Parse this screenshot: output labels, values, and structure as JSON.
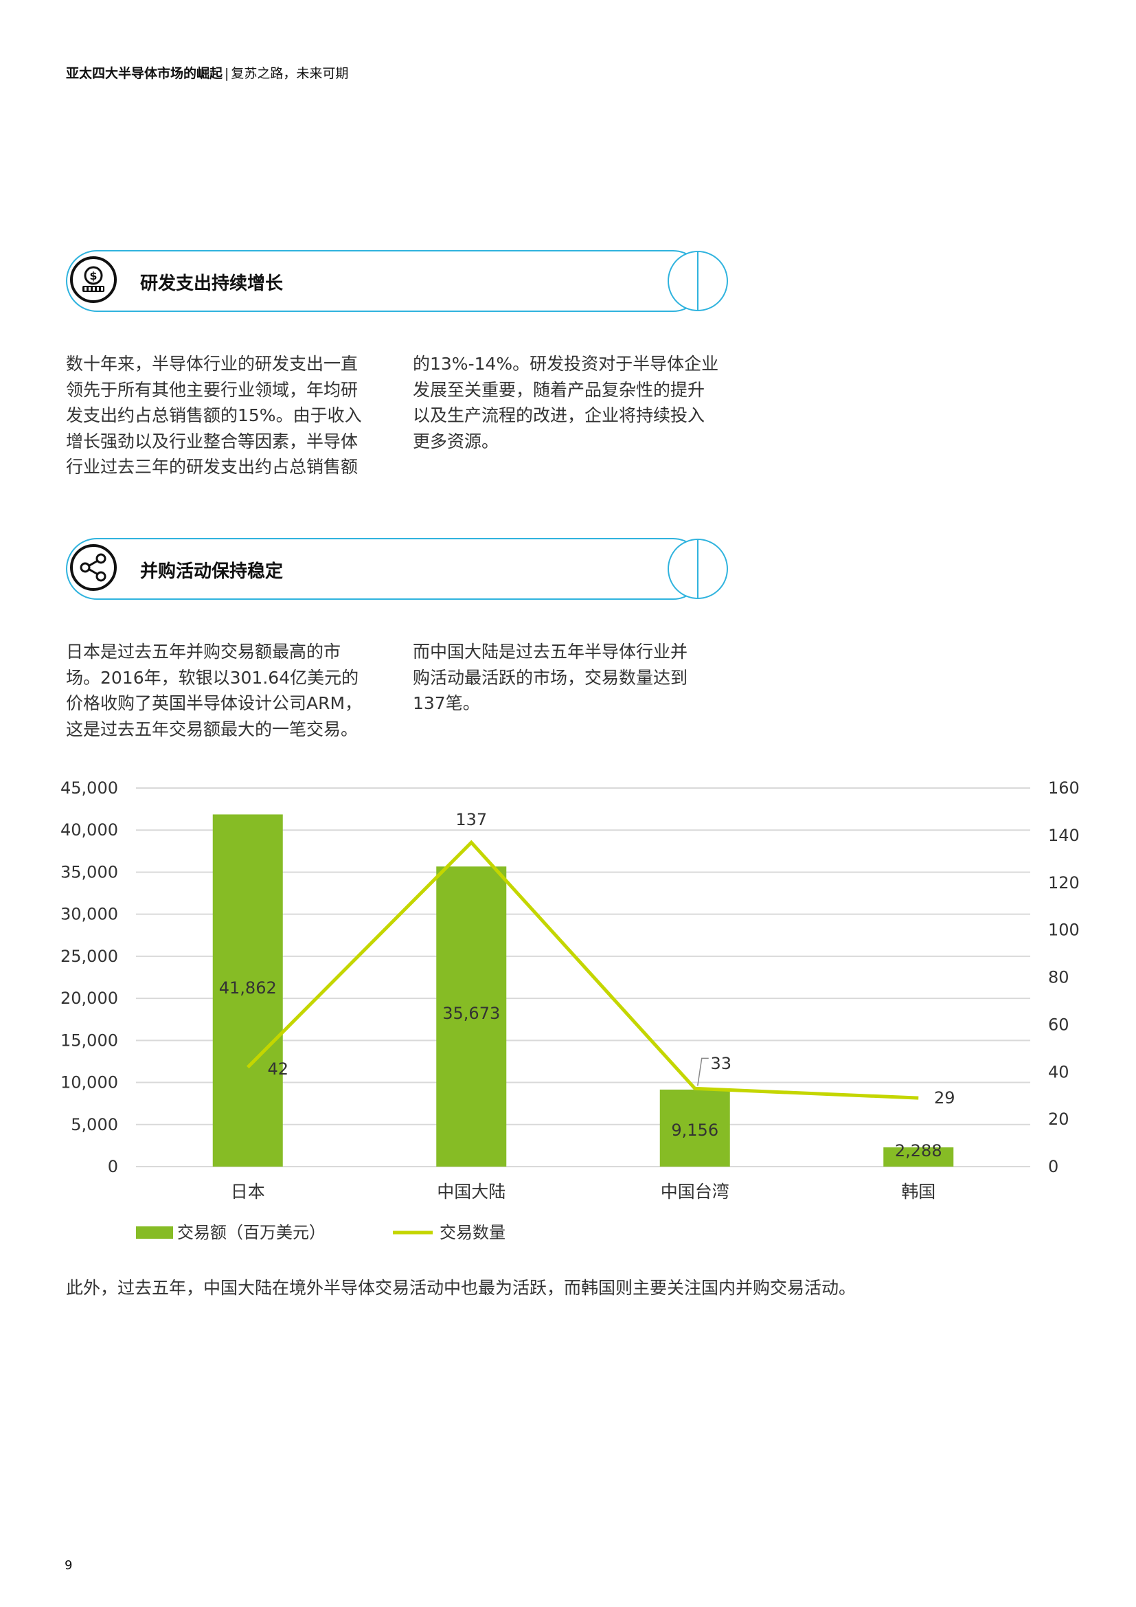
{
  "header": {
    "title_bold": "亚太四大半导体市场的崛起",
    "separator": "|",
    "subtitle": "复苏之路，未来可期"
  },
  "section1": {
    "icon": "money-gear-icon",
    "title": "研发支出持续增长",
    "col1": [
      "数十年来，半导体行业的研发支出一直",
      "领先于所有其他主要行业领域，年均研",
      "发支出约占总销售额的15%。由于收入",
      "增长强劲以及行业整合等因素，半导体",
      "行业过去三年的研发支出约占总销售额"
    ],
    "col2": [
      "的13%-14%。研发投资对于半导体企业",
      "发展至关重要，随着产品复杂性的提升",
      "以及生产流程的改进，企业将持续投入",
      "更多资源。"
    ]
  },
  "section2": {
    "icon": "share-icon",
    "title": "并购活动保持稳定",
    "col1": [
      "日本是过去五年并购交易额最高的市",
      "场。2016年，软银以301.64亿美元的",
      "价格收购了英国半导体设计公司ARM，",
      "这是过去五年交易额最大的一笔交易。"
    ],
    "col2": [
      "而中国大陆是过去五年半导体行业并",
      "购活动最活跃的市场，交易数量达到",
      "137笔。"
    ]
  },
  "chart_data": {
    "type": "bar",
    "categories": [
      "日本",
      "中国大陆",
      "中国台湾",
      "韩国"
    ],
    "series": [
      {
        "name": "交易额（百万美元）",
        "type": "bar",
        "axis": "left",
        "values": [
          41862,
          35673,
          9156,
          2288
        ],
        "labels": [
          "41,862",
          "35,673",
          "9,156",
          "2,288"
        ],
        "color": "#86bc25"
      },
      {
        "name": "交易数量",
        "type": "line",
        "axis": "right",
        "values": [
          42,
          137,
          33,
          29
        ],
        "labels": [
          "42",
          "137",
          "33",
          "29"
        ],
        "color": "#c4d600"
      }
    ],
    "y_left": {
      "min": 0,
      "max": 45000,
      "ticks": [
        "0",
        "5,000",
        "10,000",
        "15,000",
        "20,000",
        "25,000",
        "30,000",
        "35,000",
        "40,000",
        "45,000"
      ]
    },
    "y_right": {
      "min": 0,
      "max": 160,
      "ticks": [
        "0",
        "20",
        "40",
        "60",
        "80",
        "100",
        "120",
        "140",
        "160"
      ]
    },
    "grid": true,
    "legend": "bottom-left"
  },
  "footer_text": "此外，过去五年，中国大陆在境外半导体交易活动中也最为活跃，而韩国则主要关注国内并购交易活动。",
  "page_number": "9"
}
